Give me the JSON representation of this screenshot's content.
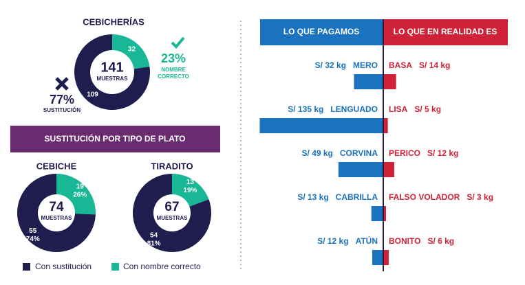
{
  "summary": {
    "type": "pie",
    "title": "CEBICHERÍAS",
    "total": 141,
    "total_label": "MUESTRAS",
    "values": [
      109,
      32
    ],
    "colors": [
      "#1f1d4e",
      "#18b795"
    ],
    "substitution": {
      "value_label": "77%",
      "label": "SUSTITUCIÓN"
    },
    "correct": {
      "value_label": "23%",
      "label": "NOMBRE CORRECTO"
    }
  },
  "banner": "SUSTITUCIÓN POR TIPO DE PLATO",
  "dishes": [
    {
      "type": "pie",
      "title": "CEBICHE",
      "total": 74,
      "total_label": "MUESTRAS",
      "values": [
        55,
        19
      ],
      "percents": [
        74,
        26
      ],
      "percent_labels": [
        "74%",
        "26%"
      ]
    },
    {
      "type": "pie",
      "title": "TIRADITO",
      "total": 67,
      "total_label": "MUESTRAS",
      "values": [
        54,
        13
      ],
      "percents": [
        81,
        19
      ],
      "percent_labels": [
        "81%",
        "19%"
      ]
    }
  ],
  "legend": [
    "Con sustitución",
    "Con nombre correcto"
  ],
  "comparison": {
    "type": "bar",
    "headers": [
      "LO QUE PAGAMOS",
      "LO QUE EN REALIDAD ES"
    ],
    "colors": [
      "#1b72bf",
      "#cf2238"
    ],
    "rows": [
      {
        "paid": "MERO",
        "paid_price": 32,
        "paid_price_label": "S/ 32 kg",
        "real": "BASA",
        "real_price": 14,
        "real_price_label": "S/ 14 kg"
      },
      {
        "paid": "LENGUADO",
        "paid_price": 135,
        "paid_price_label": "S/ 135 kg",
        "real": "LISA",
        "real_price": 5,
        "real_price_label": "S/ 5 kg"
      },
      {
        "paid": "CORVINA",
        "paid_price": 49,
        "paid_price_label": "S/ 49 kg",
        "real": "PERICO",
        "real_price": 12,
        "real_price_label": "S/ 12 kg"
      },
      {
        "paid": "CABRILLA",
        "paid_price": 13,
        "paid_price_label": "S/ 13 kg",
        "real": "FALSO VOLADOR",
        "real_price": 3,
        "real_price_label": "S/ 3 kg"
      },
      {
        "paid": "ATÚN",
        "paid_price": 12,
        "paid_price_label": "S/ 12 kg",
        "real": "BONITO",
        "real_price": 6,
        "real_price_label": "S/ 6 kg"
      }
    ]
  }
}
